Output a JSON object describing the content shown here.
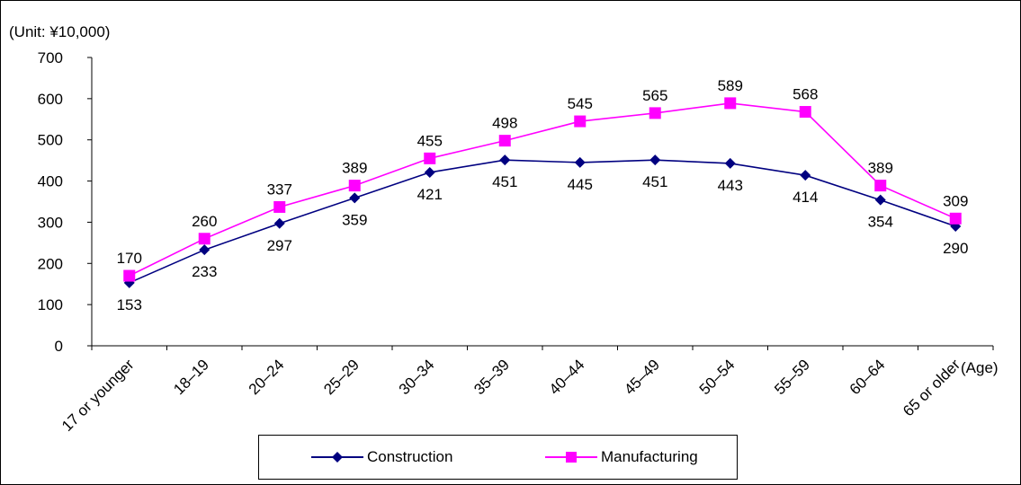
{
  "chart_data": {
    "type": "line",
    "title": "",
    "unit_label": "(Unit: ¥10,000)",
    "xlabel": "(Age)",
    "ylabel": "",
    "ylim": [
      0,
      700
    ],
    "yticks": [
      "0",
      "100",
      "200",
      "300",
      "400",
      "500",
      "600",
      "700"
    ],
    "grid": false,
    "legend_position": "bottom",
    "categories": [
      "17 or younger",
      "18–19",
      "20–24",
      "25–29",
      "30–34",
      "35–39",
      "40–44",
      "45–49",
      "50–54",
      "55–59",
      "60–64",
      "65 or older"
    ],
    "series": [
      {
        "name": "Construction",
        "color": "#000080",
        "marker": "diamond",
        "values": [
          153,
          233,
          297,
          359,
          421,
          451,
          445,
          451,
          443,
          414,
          354,
          290
        ],
        "labels": [
          "153",
          "233",
          "297",
          "359",
          "421",
          "451",
          "445",
          "451",
          "443",
          "414",
          "354",
          "290"
        ]
      },
      {
        "name": "Manufacturing",
        "color": "#ff00ff",
        "marker": "square",
        "values": [
          170,
          260,
          337,
          389,
          455,
          498,
          545,
          565,
          589,
          568,
          389,
          309
        ],
        "labels": [
          "170",
          "260",
          "337",
          "389",
          "455",
          "498",
          "545",
          "565",
          "589",
          "568",
          "389",
          "309"
        ]
      }
    ]
  }
}
